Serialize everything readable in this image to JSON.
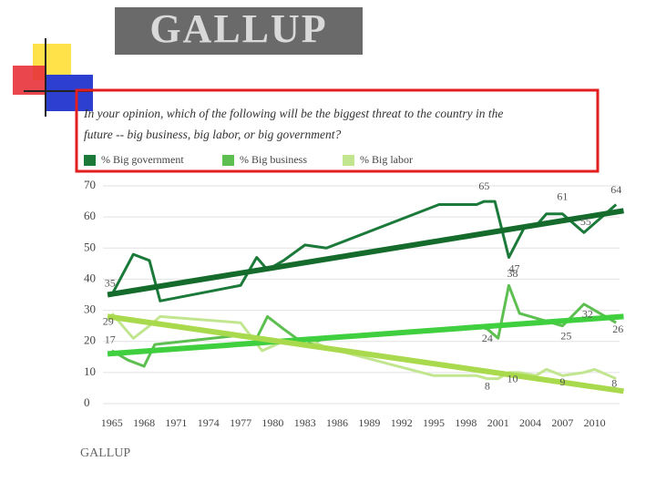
{
  "logos": {
    "top": "GALLUP",
    "bottom": "GALLUP"
  },
  "chart_data": {
    "type": "line",
    "title": "In your opinion, which of the following will be the biggest threat to the country in the future -- big business, big labor, or big government?",
    "title_lines": [
      "In your opinion, which of the following will be the biggest threat to the country in the",
      "future -- big business, big labor, or big government?"
    ],
    "xlim": [
      1964,
      2013
    ],
    "xticks": [
      1965,
      1968,
      1971,
      1974,
      1977,
      1980,
      1983,
      1986,
      1989,
      1992,
      1995,
      1998,
      2001,
      2004,
      2007,
      2010
    ],
    "ylim": [
      0,
      70
    ],
    "yticks": [
      0,
      10,
      20,
      30,
      40,
      50,
      60,
      70
    ],
    "grid": true,
    "series": [
      {
        "name": "% Big government",
        "color": "#1b7a3a",
        "x": [
          1965,
          1967,
          1968.5,
          1969.5,
          1977,
          1978.5,
          1979.5,
          1981,
          1983,
          1985,
          1995.5,
          1999,
          1999.7,
          2000.7,
          2002,
          2003.5,
          2004.5,
          2005.5,
          2007,
          2009,
          2011,
          2012
        ],
        "values": [
          35,
          48,
          46,
          33,
          38,
          47,
          43,
          46,
          51,
          50,
          64,
          64,
          65,
          65,
          47,
          57,
          57,
          61,
          61,
          55,
          61,
          64
        ],
        "labeled": [
          0,
          12,
          14,
          18,
          19,
          21
        ],
        "trend": {
          "x": [
            1964.6,
            2012.7
          ],
          "values": [
            35,
            62
          ],
          "color": "#156b2c"
        }
      },
      {
        "name": "% Big business",
        "color": "#5cbf50",
        "x": [
          1965,
          1966.5,
          1968,
          1969,
          1977,
          1978.5,
          1979.5,
          1981,
          1983,
          1985,
          1999,
          2000,
          2001,
          2002,
          2003,
          2005,
          2007,
          2009,
          2011,
          2012
        ],
        "values": [
          17,
          14,
          12,
          19,
          22,
          21,
          28,
          24,
          19,
          21,
          25,
          24,
          21,
          38,
          29,
          27,
          25,
          32,
          28,
          26
        ],
        "labeled": [
          0,
          11,
          13,
          16,
          17,
          19
        ],
        "trend": {
          "x": [
            1964.6,
            2012.7
          ],
          "values": [
            16,
            28
          ],
          "color": "#3fcf3f"
        }
      },
      {
        "name": "% Big labor",
        "color": "#c2e590",
        "x": [
          1965,
          1967,
          1968.5,
          1969.5,
          1977,
          1979,
          1981,
          1983,
          1985,
          1995,
          1999,
          2000,
          2001,
          2002,
          2003,
          2004.5,
          2005.5,
          2007,
          2009,
          2010,
          2012
        ],
        "values": [
          29,
          21,
          25,
          28,
          26,
          17,
          20,
          21,
          18,
          9,
          9,
          8,
          8,
          10,
          10,
          9,
          11,
          9,
          10,
          11,
          8
        ],
        "labeled": [
          0,
          11,
          13,
          17,
          20
        ],
        "trend": {
          "x": [
            1964.6,
            2012.7
          ],
          "values": [
            28,
            4
          ],
          "color": "#a9d94c"
        }
      }
    ]
  }
}
